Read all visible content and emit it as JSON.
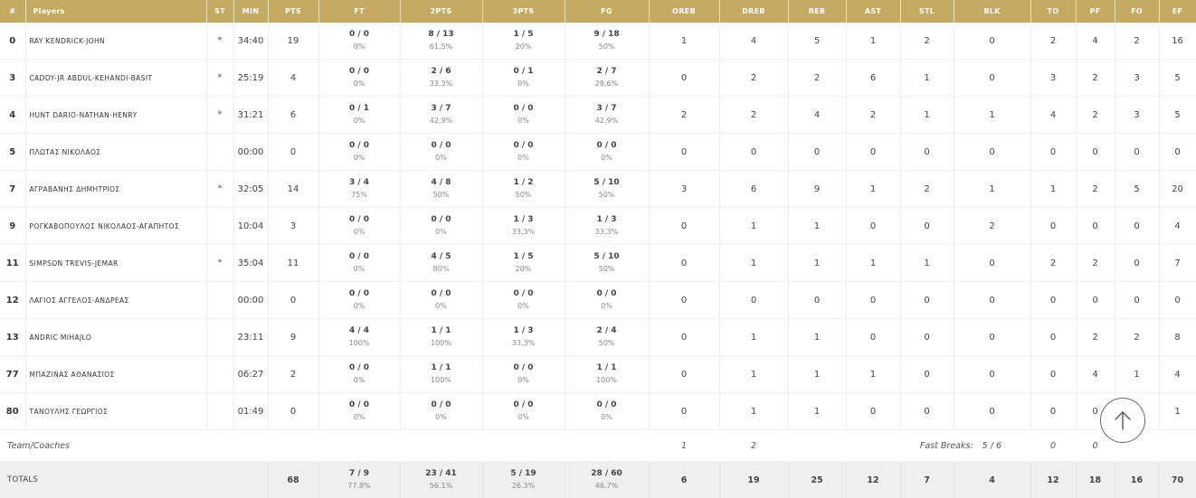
{
  "headers": [
    "#",
    "Players",
    "ST",
    "MIN",
    "PTS",
    "FT",
    "2PTS",
    "3PTS",
    "FG",
    "OREB",
    "DREB",
    "REB",
    "AST",
    "STL",
    "BLK",
    "TO",
    "PF",
    "FO",
    "EF"
  ],
  "players": [
    {
      "num": "0",
      "name": "RAY KENDRICK-JOHN",
      "st": "*",
      "min": "34:40",
      "pts": "19",
      "ft": "0 / 0",
      "ft_pct": "0%",
      "p2": "8 / 13",
      "p2_pct": "61,5%",
      "p3": "1 / 5",
      "p3_pct": "20%",
      "fg": "9 / 18",
      "fg_pct": "50%",
      "oreb": "1",
      "dreb": "4",
      "reb": "5",
      "ast": "1",
      "stl": "2",
      "blk": "0",
      "to": "2",
      "pf": "4",
      "fo": "2",
      "ef": "16"
    },
    {
      "num": "3",
      "name": "CADDY-JR ABDUL-KEHANDI-BASIT",
      "st": "*",
      "min": "25:19",
      "pts": "4",
      "ft": "0 / 0",
      "ft_pct": "0%",
      "p2": "2 / 6",
      "p2_pct": "33,3%",
      "p3": "0 / 1",
      "p3_pct": "0%",
      "fg": "2 / 7",
      "fg_pct": "28,6%",
      "oreb": "0",
      "dreb": "2",
      "reb": "2",
      "ast": "6",
      "stl": "1",
      "blk": "0",
      "to": "3",
      "pf": "2",
      "fo": "3",
      "ef": "5"
    },
    {
      "num": "4",
      "name": "HUNT DARIO-NATHAN-HENRY",
      "st": "*",
      "min": "31:21",
      "pts": "6",
      "ft": "0 / 1",
      "ft_pct": "0%",
      "p2": "3 / 7",
      "p2_pct": "42,9%",
      "p3": "0 / 0",
      "p3_pct": "0%",
      "fg": "3 / 7",
      "fg_pct": "42,9%",
      "oreb": "2",
      "dreb": "2",
      "reb": "4",
      "ast": "2",
      "stl": "1",
      "blk": "1",
      "to": "4",
      "pf": "2",
      "fo": "3",
      "ef": "5"
    },
    {
      "num": "5",
      "name": "ΠΛΩΤΑΣ ΝΙΚΟΛΑΟΣ",
      "st": "",
      "min": "00:00",
      "pts": "0",
      "ft": "0 / 0",
      "ft_pct": "0%",
      "p2": "0 / 0",
      "p2_pct": "0%",
      "p3": "0 / 0",
      "p3_pct": "0%",
      "fg": "0 / 0",
      "fg_pct": "0%",
      "oreb": "0",
      "dreb": "0",
      "reb": "0",
      "ast": "0",
      "stl": "0",
      "blk": "0",
      "to": "0",
      "pf": "0",
      "fo": "0",
      "ef": "0"
    },
    {
      "num": "7",
      "name": "ΑΓΡΑΒΑΝΗΣ ΔΗΜΗΤΡΙΟΣ",
      "st": "*",
      "min": "32:05",
      "pts": "14",
      "ft": "3 / 4",
      "ft_pct": "75%",
      "p2": "4 / 8",
      "p2_pct": "50%",
      "p3": "1 / 2",
      "p3_pct": "50%",
      "fg": "5 / 10",
      "fg_pct": "50%",
      "oreb": "3",
      "dreb": "6",
      "reb": "9",
      "ast": "1",
      "stl": "2",
      "blk": "1",
      "to": "1",
      "pf": "2",
      "fo": "5",
      "ef": "20"
    },
    {
      "num": "9",
      "name": "ΡΟΓΚΑΒΟΠΟΥΛΟΣ ΝΙΚΟΛΑΟΣ-ΑΓΑΠΗΤΟΣ",
      "st": "",
      "min": "10:04",
      "pts": "3",
      "ft": "0 / 0",
      "ft_pct": "0%",
      "p2": "0 / 0",
      "p2_pct": "0%",
      "p3": "1 / 3",
      "p3_pct": "33,3%",
      "fg": "1 / 3",
      "fg_pct": "33,3%",
      "oreb": "0",
      "dreb": "1",
      "reb": "1",
      "ast": "0",
      "stl": "0",
      "blk": "2",
      "to": "0",
      "pf": "0",
      "fo": "0",
      "ef": "4"
    },
    {
      "num": "11",
      "name": "SIMPSON TREVIS-JEMAR",
      "st": "*",
      "min": "35:04",
      "pts": "11",
      "ft": "0 / 0",
      "ft_pct": "0%",
      "p2": "4 / 5",
      "p2_pct": "80%",
      "p3": "1 / 5",
      "p3_pct": "20%",
      "fg": "5 / 10",
      "fg_pct": "50%",
      "oreb": "0",
      "dreb": "1",
      "reb": "1",
      "ast": "1",
      "stl": "1",
      "blk": "0",
      "to": "2",
      "pf": "2",
      "fo": "0",
      "ef": "7"
    },
    {
      "num": "12",
      "name": "ΛΑΓΙΟΣ ΑΓΓΕΛΟΣ-ΑΝΔΡΕΑΣ",
      "st": "",
      "min": "00:00",
      "pts": "0",
      "ft": "0 / 0",
      "ft_pct": "0%",
      "p2": "0 / 0",
      "p2_pct": "0%",
      "p3": "0 / 0",
      "p3_pct": "0%",
      "fg": "0 / 0",
      "fg_pct": "0%",
      "oreb": "0",
      "dreb": "0",
      "reb": "0",
      "ast": "0",
      "stl": "0",
      "blk": "0",
      "to": "0",
      "pf": "0",
      "fo": "0",
      "ef": "0"
    },
    {
      "num": "13",
      "name": "ANDRIC MIHAJLO",
      "st": "",
      "min": "23:11",
      "pts": "9",
      "ft": "4 / 4",
      "ft_pct": "100%",
      "p2": "1 / 1",
      "p2_pct": "100%",
      "p3": "1 / 3",
      "p3_pct": "33,3%",
      "fg": "2 / 4",
      "fg_pct": "50%",
      "oreb": "0",
      "dreb": "1",
      "reb": "1",
      "ast": "0",
      "stl": "0",
      "blk": "0",
      "to": "0",
      "pf": "2",
      "fo": "2",
      "ef": "8"
    },
    {
      "num": "77",
      "name": "ΜΠΑΖΙΝΑΣ ΑΘΑΝΑΣΙΟΣ",
      "st": "",
      "min": "06:27",
      "pts": "2",
      "ft": "0 / 0",
      "ft_pct": "0%",
      "p2": "1 / 1",
      "p2_pct": "100%",
      "p3": "0 / 0",
      "p3_pct": "0%",
      "fg": "1 / 1",
      "fg_pct": "100%",
      "oreb": "0",
      "dreb": "1",
      "reb": "1",
      "ast": "1",
      "stl": "0",
      "blk": "0",
      "to": "0",
      "pf": "4",
      "fo": "1",
      "ef": "4"
    },
    {
      "num": "80",
      "name": "ΤΑΝΟΥΛΗΣ ΓΕΩΡΓΙΟΣ",
      "st": "",
      "min": "01:49",
      "pts": "0",
      "ft": "0 / 0",
      "ft_pct": "0%",
      "p2": "0 / 0",
      "p2_pct": "0%",
      "p3": "0 / 0",
      "p3_pct": "0%",
      "fg": "0 / 0",
      "fg_pct": "0%",
      "oreb": "0",
      "dreb": "1",
      "reb": "1",
      "ast": "0",
      "stl": "0",
      "blk": "0",
      "to": "0",
      "pf": "0",
      "fo": "0",
      "ef": "1"
    }
  ],
  "team": {
    "label": "Team/Coaches",
    "oreb": "1",
    "dreb": "2",
    "fast_breaks_label": "Fast Breaks:",
    "fast_breaks_value": "5 / 6",
    "to": "0",
    "pf": "0"
  },
  "totals": {
    "label": "TOTALS",
    "pts": "68",
    "ft": "7 / 9",
    "ft_pct": "77.8%",
    "p2": "23 / 41",
    "p2_pct": "56.1%",
    "p3": "5 / 19",
    "p3_pct": "26.3%",
    "fg": "28 / 60",
    "fg_pct": "46.7%",
    "oreb": "6",
    "dreb": "19",
    "reb": "25",
    "ast": "12",
    "stl": "7",
    "blk": "4",
    "to": "12",
    "pf": "18",
    "fo": "16",
    "ef": "70"
  },
  "icons": {
    "scroll_top": "arrow-up-icon"
  },
  "colors": {
    "header_bg": "#c4a960",
    "totals_bg": "#efefef"
  }
}
